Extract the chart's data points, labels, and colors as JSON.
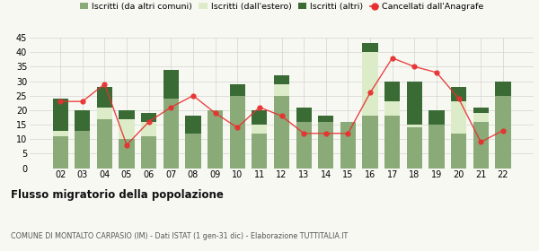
{
  "years": [
    "02",
    "03",
    "04",
    "05",
    "06",
    "07",
    "08",
    "09",
    "10",
    "11",
    "12",
    "13",
    "14",
    "15",
    "16",
    "17",
    "18",
    "19",
    "20",
    "21",
    "22"
  ],
  "iscritti_altri_comuni": [
    11,
    13,
    17,
    10,
    11,
    24,
    12,
    20,
    25,
    12,
    25,
    16,
    16,
    16,
    18,
    18,
    14,
    15,
    12,
    16,
    25
  ],
  "iscritti_estero": [
    2,
    0,
    4,
    7,
    5,
    0,
    0,
    0,
    0,
    3,
    4,
    0,
    0,
    0,
    22,
    5,
    1,
    0,
    11,
    3,
    0
  ],
  "iscritti_altri": [
    11,
    7,
    7,
    3,
    3,
    10,
    6,
    0,
    4,
    5,
    3,
    5,
    2,
    0,
    3,
    7,
    15,
    5,
    5,
    2,
    5
  ],
  "cancellati": [
    23,
    23,
    29,
    8,
    16,
    21,
    25,
    19,
    14,
    21,
    18,
    12,
    12,
    12,
    26,
    38,
    35,
    33,
    24,
    9,
    13
  ],
  "color_altri_comuni": "#8aab78",
  "color_estero": "#ddecc8",
  "color_altri": "#3a6b35",
  "color_cancellati": "#e83030",
  "ylim": [
    0,
    45
  ],
  "yticks": [
    0,
    5,
    10,
    15,
    20,
    25,
    30,
    35,
    40,
    45
  ],
  "title": "Flusso migratorio della popolazione",
  "subtitle": "COMUNE DI MONTALTO CARPASIO (IM) - Dati ISTAT (1 gen-31 dic) - Elaborazione TUTTITALIA.IT",
  "legend_labels": [
    "Iscritti (da altri comuni)",
    "Iscritti (dall'estero)",
    "Iscritti (altri)",
    "Cancellati dall'Anagrafe"
  ],
  "bg_color": "#f8f8f3",
  "grid_color": "#d8d8d8"
}
